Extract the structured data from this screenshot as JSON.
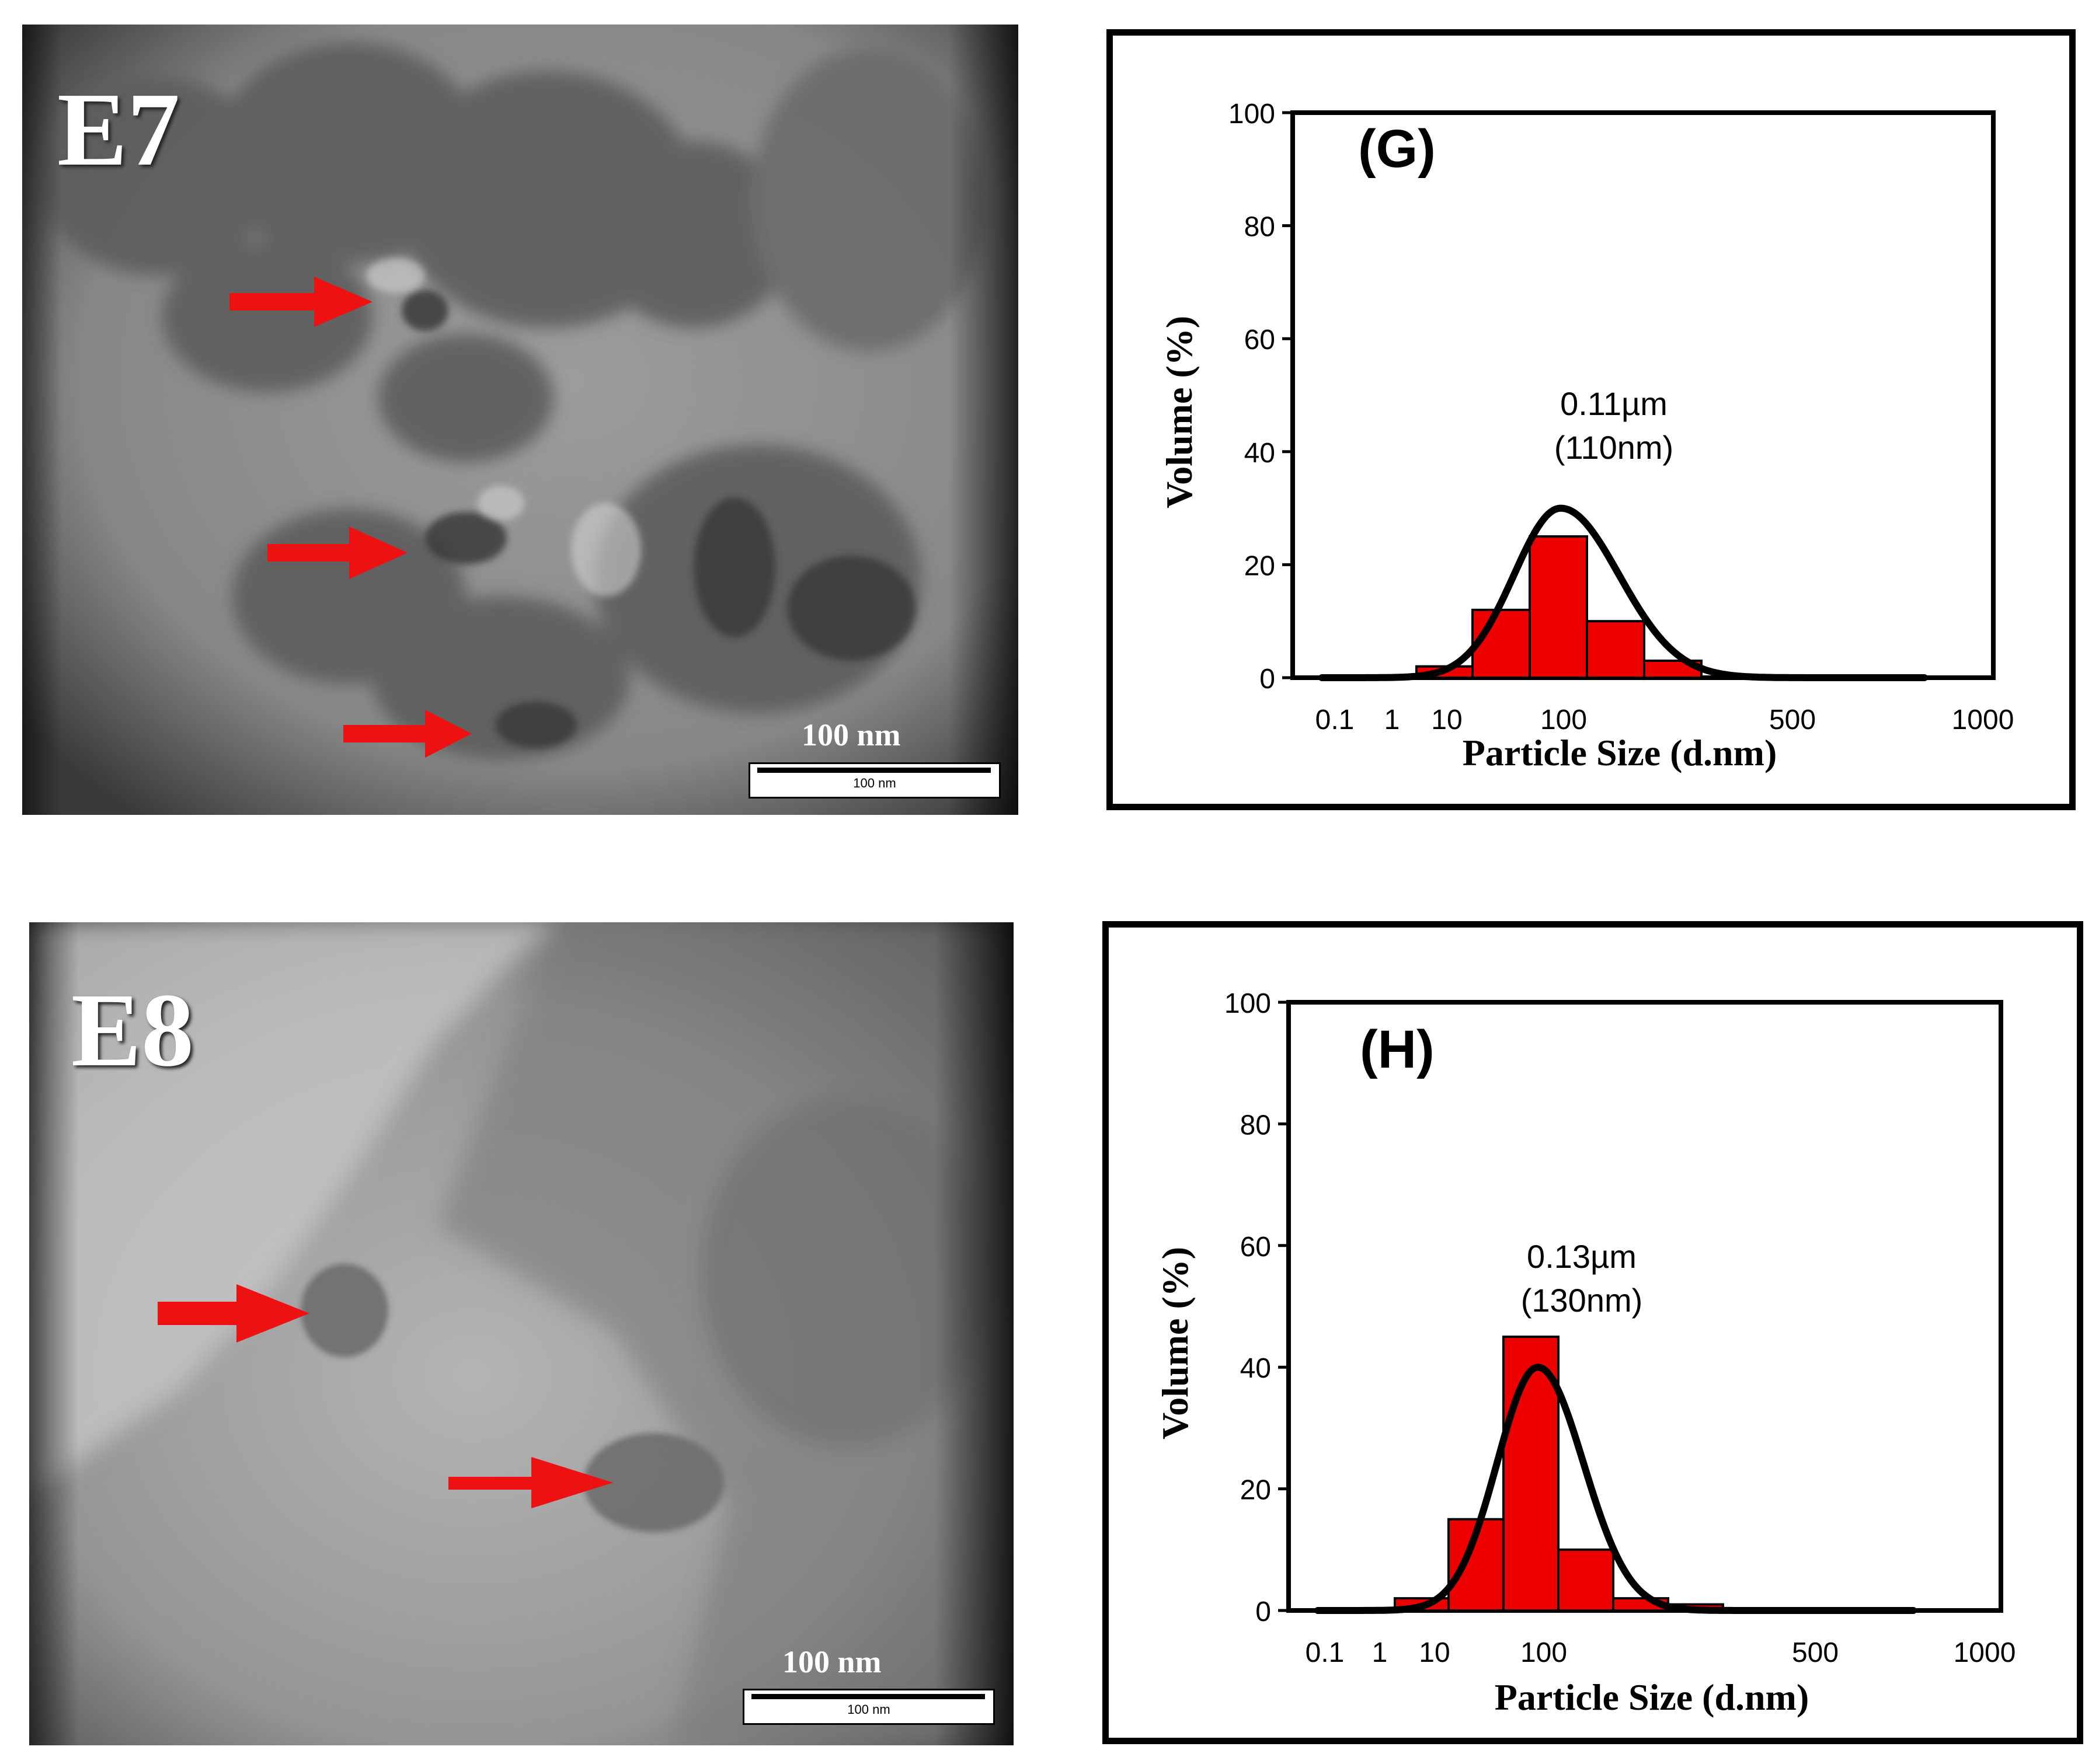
{
  "panels": {
    "e7": {
      "label": "E7",
      "scale_text": "100 nm",
      "scale_small": "100 nm"
    },
    "e8": {
      "label": "E8",
      "scale_text": "100 nm",
      "scale_small": "100 nm"
    }
  },
  "colors": {
    "bar": "#ee0000",
    "curve": "#000000",
    "arrow": "#ee1111"
  },
  "chart_data": [
    {
      "type": "bar",
      "panel_label": "(G)",
      "xlabel": "Particle Size (d.nm)",
      "ylabel": "Volume (%)",
      "ylim": [
        0,
        100
      ],
      "yticks": [
        0,
        20,
        40,
        60,
        80,
        100
      ],
      "xtick_labels": [
        "0.1",
        "1",
        "10",
        "100",
        "500",
        "1000"
      ],
      "annotation": [
        "0.11µm",
        "(110nm)"
      ],
      "peak_nm": 110,
      "bars": [
        {
          "label": "~10",
          "value": 2
        },
        {
          "label": "~30",
          "value": 12
        },
        {
          "label": "~100",
          "value": 25
        },
        {
          "label": "~200",
          "value": 10
        },
        {
          "label": "~300",
          "value": 3
        }
      ],
      "curve_peak_value": 30
    },
    {
      "type": "bar",
      "panel_label": "(H)",
      "xlabel": "Particle Size (d.nm)",
      "ylabel": "Volume (%)",
      "ylim": [
        0,
        100
      ],
      "yticks": [
        0,
        20,
        40,
        60,
        80,
        100
      ],
      "xtick_labels": [
        "0.1",
        "1",
        "10",
        "100",
        "500",
        "1000"
      ],
      "annotation": [
        "0.13µm",
        "(130nm)"
      ],
      "peak_nm": 130,
      "bars": [
        {
          "label": "~10",
          "value": 2
        },
        {
          "label": "~30",
          "value": 15
        },
        {
          "label": "~100",
          "value": 45
        },
        {
          "label": "~200",
          "value": 10
        },
        {
          "label": "~300",
          "value": 2
        },
        {
          "label": "~400",
          "value": 1
        }
      ],
      "curve_peak_value": 40
    }
  ]
}
